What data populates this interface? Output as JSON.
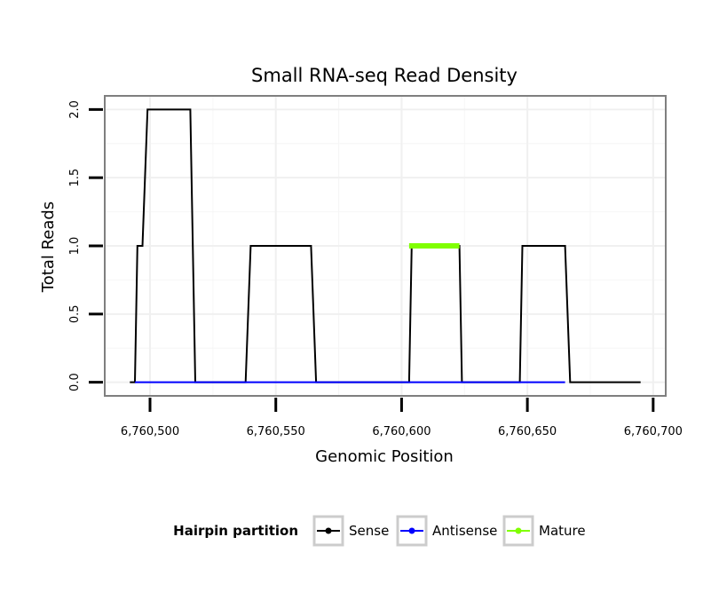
{
  "chart_data": {
    "type": "line",
    "title": "Small RNA-seq Read Density",
    "xlabel": "Genomic Position",
    "ylabel": "Total Reads",
    "xlim": [
      6760482,
      6760705
    ],
    "ylim": [
      -0.1,
      2.1
    ],
    "x_ticks": [
      {
        "value": 6760500,
        "label": "6,760,500"
      },
      {
        "value": 6760550,
        "label": "6,760,550"
      },
      {
        "value": 6760600,
        "label": "6,760,600"
      },
      {
        "value": 6760650,
        "label": "6,760,650"
      },
      {
        "value": 6760700,
        "label": "6,760,700"
      }
    ],
    "y_ticks": [
      {
        "value": 0.0,
        "label": "0.0"
      },
      {
        "value": 0.5,
        "label": "0.5"
      },
      {
        "value": 1.0,
        "label": "1.0"
      },
      {
        "value": 1.5,
        "label": "1.5"
      },
      {
        "value": 2.0,
        "label": "2.0"
      }
    ],
    "grid": true,
    "legend_position": "bottom",
    "legend_title": "Hairpin partition",
    "series": [
      {
        "name": "Sense",
        "color": "#000000",
        "x": [
          6760492,
          6760494,
          6760495,
          6760497,
          6760497,
          6760499,
          6760516,
          6760518,
          6760538,
          6760540,
          6760564,
          6760566,
          6760603,
          6760604,
          6760623,
          6760624,
          6760647,
          6760648,
          6760665,
          6760667,
          6760695
        ],
        "y": [
          0,
          0,
          1,
          1,
          1,
          2,
          2,
          0,
          0,
          1,
          1,
          0,
          0,
          1,
          1,
          0,
          0,
          1,
          1,
          0,
          0
        ]
      },
      {
        "name": "Antisense",
        "color": "#0000ff",
        "x": [
          6760494,
          6760665
        ],
        "y": [
          0,
          0
        ]
      },
      {
        "name": "Mature",
        "color": "#80ff00",
        "x": [
          6760603,
          6760623
        ],
        "y": [
          1,
          1
        ]
      }
    ]
  }
}
